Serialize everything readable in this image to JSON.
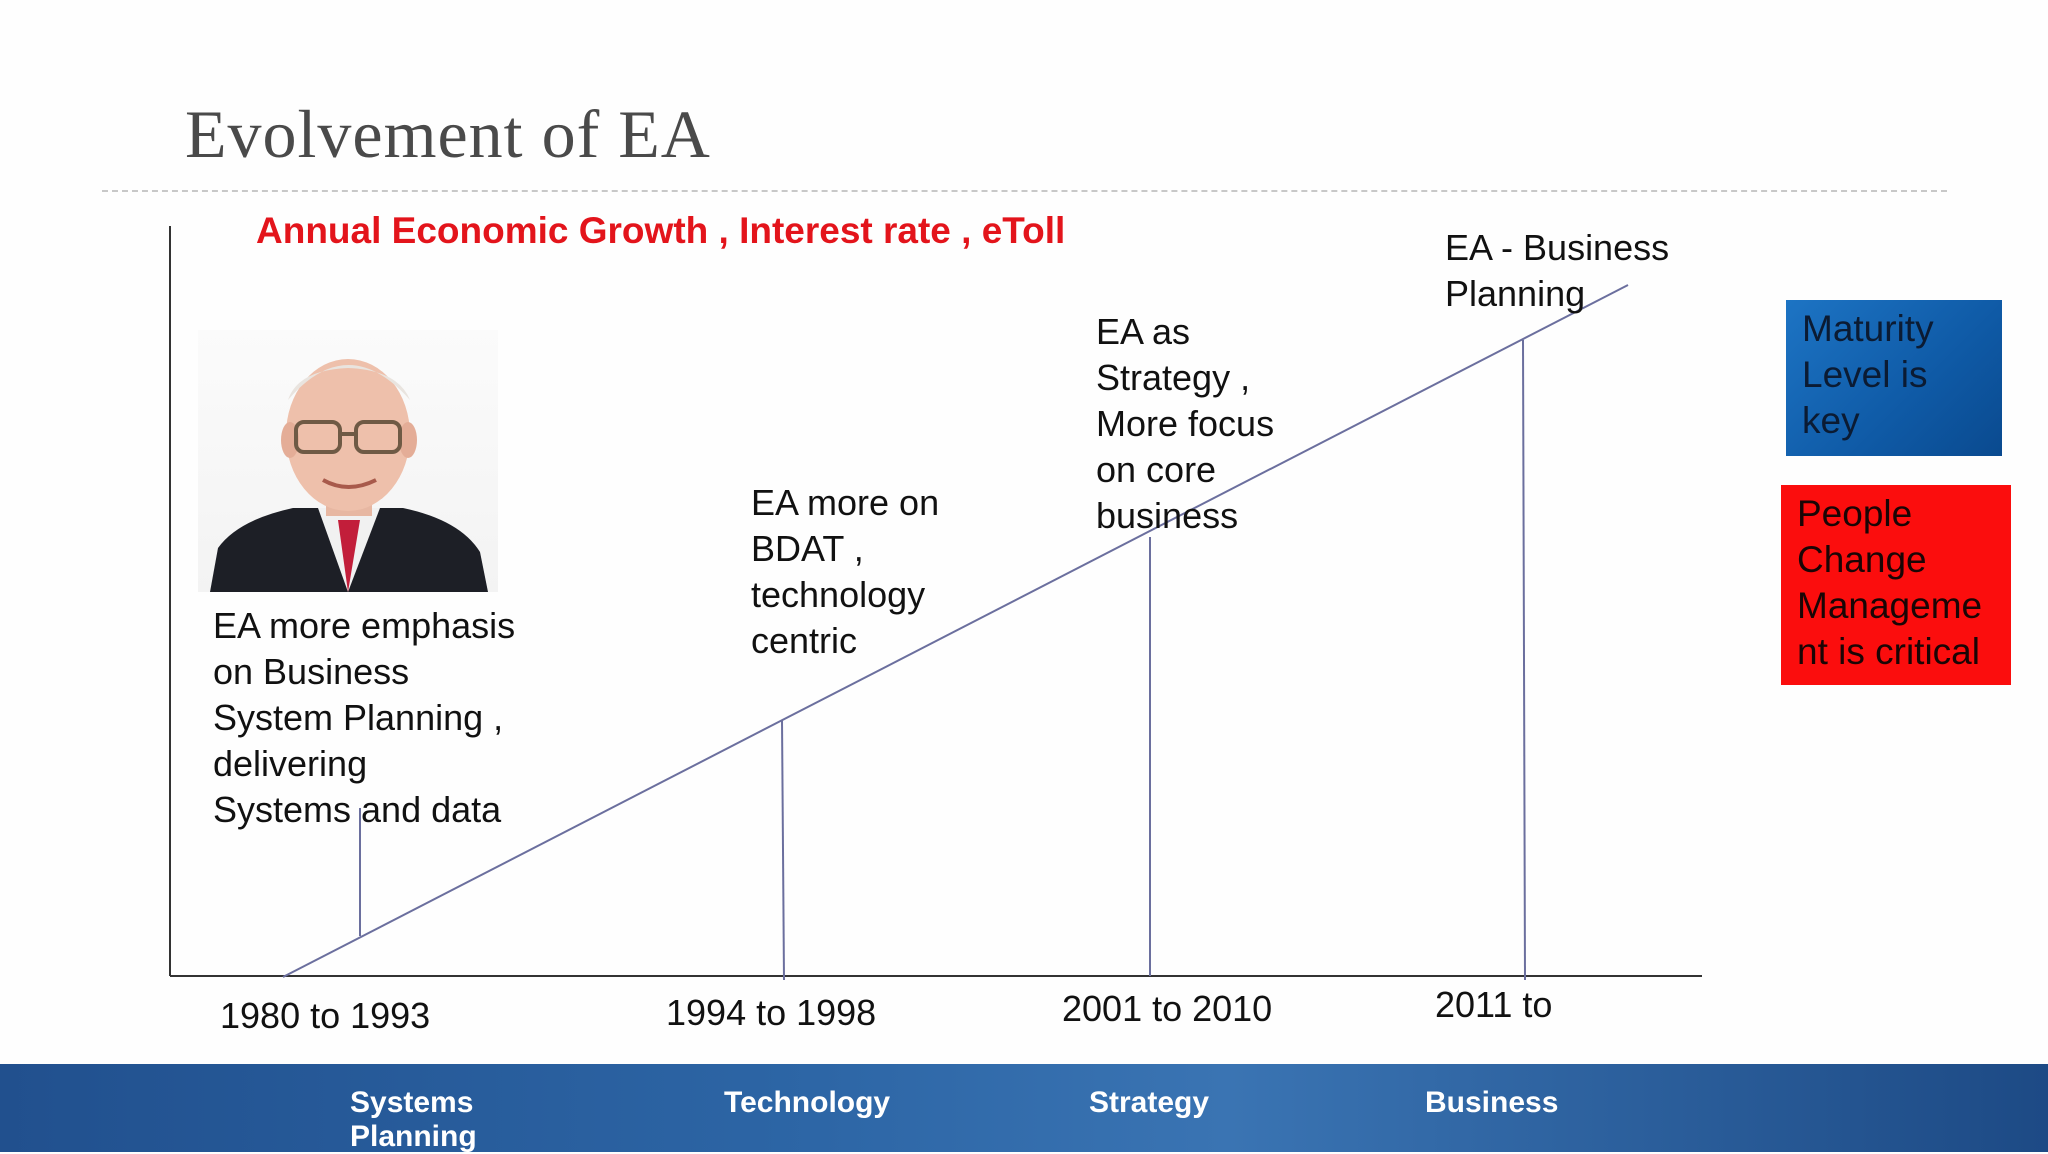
{
  "title": "Evolvement of EA",
  "subtitle": "Annual Economic Growth , Interest rate , eToll",
  "portrait_image": "portrait-photo",
  "stages": [
    {
      "label": "EA more emphasis\non Business\nSystem Planning ,\ndelivering\nSystems and data",
      "period": "1980 to 1993"
    },
    {
      "label": "EA more on\nBDAT ,\ntechnology\ncentric",
      "period": "1994 to 1998"
    },
    {
      "label": "EA as\nStrategy ,\nMore focus\non core\nbusiness",
      "period": "2001 to 2010"
    },
    {
      "label": "EA - Business\nPlanning",
      "period": "2011 to"
    }
  ],
  "callouts": {
    "maturity": "Maturity\n Level is\nkey",
    "people": "People\nChange\nManageme\nnt is critical"
  },
  "footer": [
    "Systems\nPlanning",
    "Technology",
    "Strategy",
    "Business"
  ],
  "colors": {
    "subtitle": "#e3141b",
    "maturity_box": "#1566b3",
    "people_box": "#fb0d0d",
    "footer_band": "#2d66a6",
    "line": "#6b6f9e"
  }
}
